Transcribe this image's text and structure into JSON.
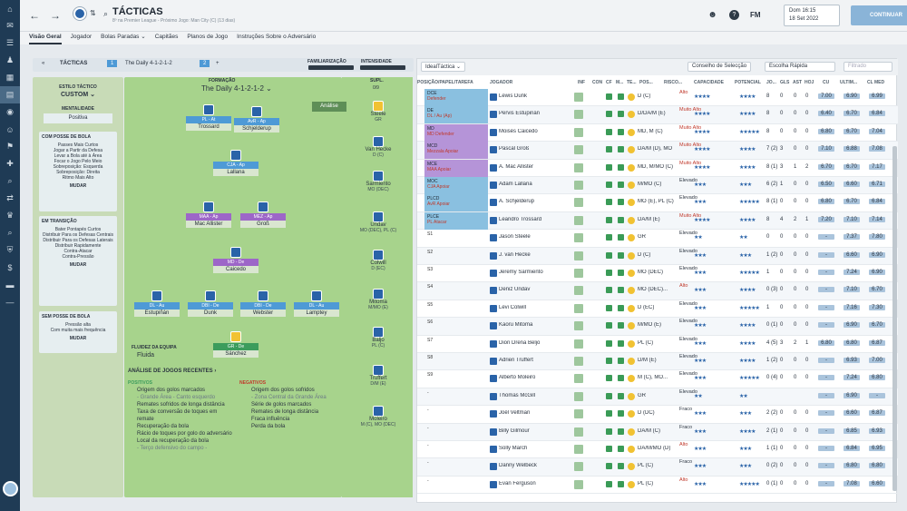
{
  "header": {
    "title": "TÁCTICAS",
    "subtitle": "8º na Premier League - Próximo Jogo: Man City (C) (13 dias)",
    "fm": "FM",
    "date_line1": "Dom 16:15",
    "date_line2": "18 Set 2022",
    "continue": "CONTINUAR"
  },
  "subnav": [
    "Visão Geral",
    "Jogador",
    "Bolas Paradas ⌄",
    "Capitães",
    "Planos de Jogo",
    "Instruções Sobre o Adversário"
  ],
  "toolbar": {
    "tacticas": "TÁCTICAS",
    "tab1": "1",
    "tactic": "The Daily 4-1-2-1-2",
    "tab2": "2",
    "add": "+",
    "familiarity": "FAMILIARIZAÇÃO",
    "intensity": "INTENSIDADE"
  },
  "left": {
    "style_label": "ESTILO TÁCTICO",
    "style": "CUSTOM ⌄",
    "mentality_label": "MENTALIDADE",
    "mentality": "Positiva",
    "with_ball": {
      "title": "COM POSSE DE BOLA",
      "lines": [
        "Passes Mais Curtos",
        "Jogar a Partir da Defesa",
        "Levar a Bola até à Área",
        "Focar o Jogo Pelo Meio",
        "Sobreposição: Esquerda",
        "Sobreposição: Direita",
        "Ritmo Mais Alto"
      ],
      "btn": "MUDAR"
    },
    "transition": {
      "title": "EM TRANSIÇÃO",
      "lines": [
        "Bater Pontapés Curtos",
        "Distribuir Para os Defesas Centrais",
        "Distribuir Para os Defesas Laterais",
        "Distribuir Rapidamente",
        "Contra-Atacar",
        "Contra-Pressão"
      ],
      "btn": "MUDAR"
    },
    "without_ball": {
      "title": "SEM POSSE DE BOLA",
      "lines": [
        "Pressão alta",
        "Com muita mais frequência"
      ],
      "btn": "MUDAR"
    }
  },
  "formation": {
    "label": "FORMAÇÃO",
    "name": "The Daily 4-1-2-1-2 ⌄",
    "analysis_btn": "Análise",
    "subs_label": "SUPL.",
    "subs_count": "0/9"
  },
  "players": [
    {
      "name": "Trossard",
      "role": "PL - At",
      "color": "blue",
      "num": "11"
    },
    {
      "name": "Schjelderup",
      "role": "AvR - Ap",
      "color": "blue",
      "num": "18"
    },
    {
      "name": "Lallana",
      "role": "CJA - Ap",
      "color": "blue",
      "num": "14"
    },
    {
      "name": "Mac Allister",
      "role": "MAA - Ap",
      "color": "purple",
      "num": "10"
    },
    {
      "name": "Groß",
      "role": "MEZ - Ap",
      "color": "purple",
      "num": "13"
    },
    {
      "name": "Caicedo",
      "role": "MD - De",
      "color": "purple",
      "num": "25"
    },
    {
      "name": "Estupiñán",
      "role": "DL - Au",
      "color": "blue",
      "num": "30"
    },
    {
      "name": "Dunk",
      "role": "DBI - De",
      "color": "blue",
      "num": "5"
    },
    {
      "name": "Webster",
      "role": "DBI - De",
      "color": "blue",
      "num": "4"
    },
    {
      "name": "Lamptey",
      "role": "DL - Au",
      "color": "blue",
      "num": "2"
    },
    {
      "name": "Sánchez",
      "role": "GR - De",
      "color": "greenr",
      "num": "1"
    }
  ],
  "subs": [
    {
      "name": "Steele",
      "pos": "GR",
      "num": "23"
    },
    {
      "name": "Van Hecke",
      "pos": "D (C)",
      "num": "29"
    },
    {
      "name": "Sarmiento",
      "pos": "MO (DEC)",
      "num": "16"
    },
    {
      "name": "Undav",
      "pos": "MO (DEC), PL (C)",
      "num": "21"
    },
    {
      "name": "Colwill",
      "pos": "D (EC)",
      "num": "26"
    },
    {
      "name": "Mitoma",
      "pos": "M/MO (E)",
      "num": "22"
    },
    {
      "name": "Baljo",
      "pos": "PL (C)",
      "num": "27"
    },
    {
      "name": "Truffert",
      "pos": "D/M (E)",
      "num": "33"
    },
    {
      "name": "Moleiro",
      "pos": "M (C), MO (DEC)",
      "num": "24"
    }
  ],
  "analysis": {
    "fluidity_label": "FLUIDEZ DA EQUIPA",
    "fluidity": "Fluida",
    "recent": "ANÁLISE DE JOGOS RECENTES ›",
    "pos_title": "POSITIVOS",
    "neg_title": "NEGATIVOS",
    "positives": [
      "Origem dos golos marcados",
      "- Grande Área - Canto esquerdo",
      "Remates sofridos de longa distância",
      "Taxa de conversão de toques em remate",
      "Recuperação da bola",
      "Rácio de toques por golo do adversário",
      "Local da recuperação da bola",
      "- Terço defensivo do campo -"
    ],
    "negatives": [
      "Origem dos golos sofridos",
      "- Zona Central da Grande Área",
      "Série de golos marcados",
      "Remates de longa distância",
      "Fraca influência",
      "Perda da bola"
    ]
  },
  "rightpanel": {
    "view": "IdealTáctica ⌄",
    "advice": "Conselho de Selecção",
    "quick": "Escolha Rápida",
    "filter": "Filtrado"
  },
  "columns": [
    "POSIÇÃO/PAPEL/TAREFA",
    "JOGADOR",
    "INF",
    "CON",
    "CF",
    "M...",
    "TE...",
    "POS...",
    "RISCO...",
    "CAPACIDADE",
    "POTENCIAL",
    "JO...",
    "GLS",
    "AST",
    "HOJ",
    "CU",
    "ULTIM...",
    "CL MED"
  ],
  "rows": [
    {
      "pos": "DCE",
      "role": "Defender",
      "pc": "blue",
      "name": "Lewis Dunk",
      "posn": "D (C)",
      "risk": "Alto",
      "cap": "★★★★",
      "pot": "★★★★",
      "jo": "8",
      "gls": "0",
      "ast": "0",
      "hoi": "0",
      "cu": "7.00",
      "ult": "6.90",
      "clm": "6.99"
    },
    {
      "pos": "DE",
      "role": "DL / Au (Ap)",
      "pc": "blue",
      "name": "Pervis Estupiñán",
      "posn": "D/DA/M (E)",
      "risk": "Muito Alto",
      "cap": "★★★★",
      "pot": "★★★★",
      "jo": "8",
      "gls": "0",
      "ast": "0",
      "hoi": "0",
      "cu": "6.40",
      "ult": "6.70",
      "clm": "6.84"
    },
    {
      "pos": "MD",
      "role": "MD Defender",
      "pc": "purple",
      "name": "Moisés Caicedo",
      "posn": "MD, M (C)",
      "risk": "Muito Alto",
      "cap": "★★★★",
      "pot": "★★★★★",
      "jo": "8",
      "gls": "0",
      "ast": "0",
      "hoi": "0",
      "cu": "6.80",
      "ult": "6.70",
      "clm": "7.04"
    },
    {
      "pos": "MCD",
      "role": "Mezzala Apoiar",
      "pc": "purple",
      "name": "Pascal Groß",
      "posn": "DA/M (D), MO (C)",
      "risk": "Muito Alto",
      "cap": "★★★★",
      "pot": "★★★★",
      "jo": "7 (2)",
      "gls": "3",
      "ast": "0",
      "hoi": "0",
      "cu": "7.10",
      "ult": "6.88",
      "clm": "7.08"
    },
    {
      "pos": "MCE",
      "role": "MAA Apoiar",
      "pc": "purple",
      "name": "A. Mac Allister",
      "posn": "MD, M/MO (C)",
      "risk": "Muito Alto",
      "cap": "★★★★",
      "pot": "★★★★",
      "jo": "8 (1)",
      "gls": "3",
      "ast": "1",
      "hoi": "2",
      "cu": "6.70",
      "ult": "6.70",
      "clm": "7.17"
    },
    {
      "pos": "MOC",
      "role": "CJA Apoiar",
      "pc": "blue",
      "name": "Adam Lallana",
      "posn": "M/MO (C)",
      "risk": "Elevado",
      "cap": "★★★",
      "pot": "★★★",
      "jo": "6 (2)",
      "gls": "1",
      "ast": "0",
      "hoi": "0",
      "cu": "6.50",
      "ult": "6.60",
      "clm": "6.71"
    },
    {
      "pos": "PLCD",
      "role": "AvR Apoiar",
      "pc": "blue",
      "name": "A. Schjelderup",
      "posn": "MO (E), PL (C)",
      "risk": "Elevado",
      "cap": "★★★",
      "pot": "★★★★★",
      "jo": "8 (1)",
      "gls": "0",
      "ast": "0",
      "hoi": "0",
      "cu": "6.80",
      "ult": "6.70",
      "clm": "6.84"
    },
    {
      "pos": "PLCE",
      "role": "PL Atacar",
      "pc": "blue",
      "name": "Leandro Trossard",
      "posn": "DA/M (E)",
      "risk": "Muito Alto",
      "cap": "★★★★",
      "pot": "★★★★",
      "jo": "8",
      "gls": "4",
      "ast": "2",
      "hoi": "1",
      "cu": "7.20",
      "ult": "7.10",
      "clm": "7.14"
    },
    {
      "pos": "S1",
      "role": "",
      "pc": "plain",
      "name": "Jason Steele",
      "posn": "GR",
      "risk": "Elevado",
      "cap": "★★",
      "pot": "★★",
      "jo": "0",
      "gls": "0",
      "ast": "0",
      "hoi": "0",
      "cu": "-",
      "ult": "7.37",
      "clm": "7.80"
    },
    {
      "pos": "S2",
      "role": "",
      "pc": "plain",
      "name": "J. van Hecke",
      "posn": "D (C)",
      "risk": "Elevado",
      "cap": "★★★",
      "pot": "★★★",
      "jo": "1 (2)",
      "gls": "0",
      "ast": "0",
      "hoi": "0",
      "cu": "-",
      "ult": "6.60",
      "clm": "6.90"
    },
    {
      "pos": "S3",
      "role": "",
      "pc": "plain",
      "name": "Jeremy Sarmiento",
      "posn": "MO (DEC)",
      "risk": "Elevado",
      "cap": "★★★",
      "pot": "★★★★★",
      "jo": "1",
      "gls": "0",
      "ast": "0",
      "hoi": "0",
      "cu": "-",
      "ult": "7.24",
      "clm": "6.90"
    },
    {
      "pos": "S4",
      "role": "",
      "pc": "plain",
      "name": "Deniz Undav",
      "posn": "MO (DEC)...",
      "risk": "Alto",
      "cap": "★★★",
      "pot": "★★★★",
      "jo": "0 (3)",
      "gls": "0",
      "ast": "0",
      "hoi": "0",
      "cu": "-",
      "ult": "7.10",
      "clm": "6.70"
    },
    {
      "pos": "S5",
      "role": "",
      "pc": "plain",
      "name": "Levi Colwill",
      "posn": "D (EC)",
      "risk": "Elevado",
      "cap": "★★★",
      "pot": "★★★★★",
      "jo": "1",
      "gls": "0",
      "ast": "0",
      "hoi": "0",
      "cu": "-",
      "ult": "7.16",
      "clm": "7.30"
    },
    {
      "pos": "S6",
      "role": "",
      "pc": "plain",
      "name": "Kaoru Mitoma",
      "posn": "M/MO (E)",
      "risk": "Elevado",
      "cap": "★★★",
      "pot": "★★★★",
      "jo": "0 (1)",
      "gls": "0",
      "ast": "0",
      "hoi": "0",
      "cu": "-",
      "ult": "6.90",
      "clm": "6.70"
    },
    {
      "pos": "S7",
      "role": "",
      "pc": "plain",
      "name": "Dion Drena Beljo",
      "posn": "PL (C)",
      "risk": "Elevado",
      "cap": "★★★",
      "pot": "★★★★",
      "jo": "4 (5)",
      "gls": "3",
      "ast": "2",
      "hoi": "1",
      "cu": "6.80",
      "ult": "6.80",
      "clm": "6.87"
    },
    {
      "pos": "S8",
      "role": "",
      "pc": "plain",
      "name": "Adrien Truffert",
      "posn": "D/M (E)",
      "risk": "Elevado",
      "cap": "★★★",
      "pot": "★★★★",
      "jo": "1 (2)",
      "gls": "0",
      "ast": "0",
      "hoi": "0",
      "cu": "-",
      "ult": "6.93",
      "clm": "7.00"
    },
    {
      "pos": "S9",
      "role": "",
      "pc": "plain",
      "name": "Alberto Moleiro",
      "posn": "M (C), MO...",
      "risk": "Elevado",
      "cap": "★★★",
      "pot": "★★★★★",
      "jo": "0 (4)",
      "gls": "0",
      "ast": "0",
      "hoi": "0",
      "cu": "-",
      "ult": "7.24",
      "clm": "6.80"
    },
    {
      "pos": "-",
      "role": "",
      "pc": "plain",
      "name": "Thomas McGill",
      "posn": "GR",
      "risk": "Elevado",
      "cap": "★★",
      "pot": "★★",
      "jo": "",
      "gls": "",
      "ast": "",
      "hoi": "",
      "cu": "-",
      "ult": "6.90",
      "clm": "-"
    },
    {
      "pos": "-",
      "role": "",
      "pc": "plain",
      "name": "Joël Veltman",
      "posn": "D (DC)",
      "risk": "Fraco",
      "cap": "★★★",
      "pot": "★★★",
      "jo": "2 (2)",
      "gls": "0",
      "ast": "0",
      "hoi": "0",
      "cu": "-",
      "ult": "6.60",
      "clm": "6.87"
    },
    {
      "pos": "-",
      "role": "",
      "pc": "plain",
      "name": "Billy Gilmour",
      "posn": "DA/M (C)",
      "risk": "Fraco",
      "cap": "★★★",
      "pot": "★★★★",
      "jo": "2 (1)",
      "gls": "0",
      "ast": "0",
      "hoi": "0",
      "cu": "-",
      "ult": "6.85",
      "clm": "6.93"
    },
    {
      "pos": "-",
      "role": "",
      "pc": "plain",
      "name": "Solly March",
      "posn": "DA/M/MO (D)",
      "risk": "Alto",
      "cap": "★★★",
      "pot": "★★★",
      "jo": "1 (1)",
      "gls": "0",
      "ast": "0",
      "hoi": "0",
      "cu": "-",
      "ult": "6.84",
      "clm": "6.95"
    },
    {
      "pos": "-",
      "role": "",
      "pc": "plain",
      "name": "Danny Welbeck",
      "posn": "PL (C)",
      "risk": "Fraco",
      "cap": "★★★",
      "pot": "★★★",
      "jo": "0 (2)",
      "gls": "0",
      "ast": "0",
      "hoi": "0",
      "cu": "-",
      "ult": "6.80",
      "clm": "6.80"
    },
    {
      "pos": "-",
      "role": "",
      "pc": "plain",
      "name": "Evan Ferguson",
      "posn": "PL (C)",
      "risk": "Alto",
      "cap": "★★★",
      "pot": "★★★★★",
      "jo": "0 (1)",
      "gls": "0",
      "ast": "0",
      "hoi": "0",
      "cu": "-",
      "ult": "7.08",
      "clm": "6.60"
    }
  ]
}
